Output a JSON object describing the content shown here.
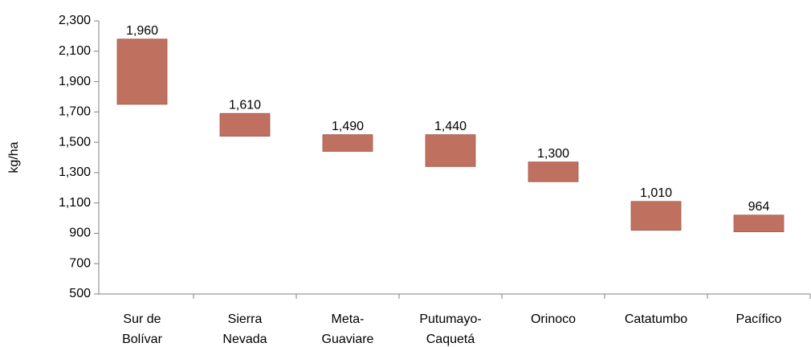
{
  "chart_data": {
    "type": "floating-bar",
    "y_label": "kg/ha",
    "categories": [
      [
        "Sur de",
        "Bolívar"
      ],
      [
        "Sierra",
        "Nevada"
      ],
      [
        "Meta-",
        "Guaviare"
      ],
      [
        "Putumayo-",
        "Caquetá"
      ],
      [
        "Orinoco"
      ],
      [
        "Catatumbo"
      ],
      [
        "Pacífico"
      ]
    ],
    "low": [
      1750,
      1540,
      1440,
      1340,
      1240,
      920,
      910
    ],
    "high": [
      2180,
      1690,
      1550,
      1550,
      1370,
      1110,
      1020
    ],
    "values": [
      1960,
      1610,
      1490,
      1440,
      1300,
      1010,
      964
    ],
    "value_labels": [
      "1,960",
      "1,610",
      "1,490",
      "1,440",
      "1,300",
      "1,010",
      "964"
    ],
    "color": "#c0705f",
    "ylim": [
      500,
      2300
    ],
    "yticks": [
      {
        "value": 500,
        "label": "500"
      },
      {
        "value": 700,
        "label": "700"
      },
      {
        "value": 900,
        "label": "900"
      },
      {
        "value": 1100,
        "label": "1,100"
      },
      {
        "value": 1300,
        "label": "1,300"
      },
      {
        "value": 1500,
        "label": "1,500"
      },
      {
        "value": 1700,
        "label": "1,700"
      },
      {
        "value": 1900,
        "label": "1,900"
      },
      {
        "value": 2100,
        "label": "2,100"
      },
      {
        "value": 2300,
        "label": "2,300"
      }
    ]
  }
}
